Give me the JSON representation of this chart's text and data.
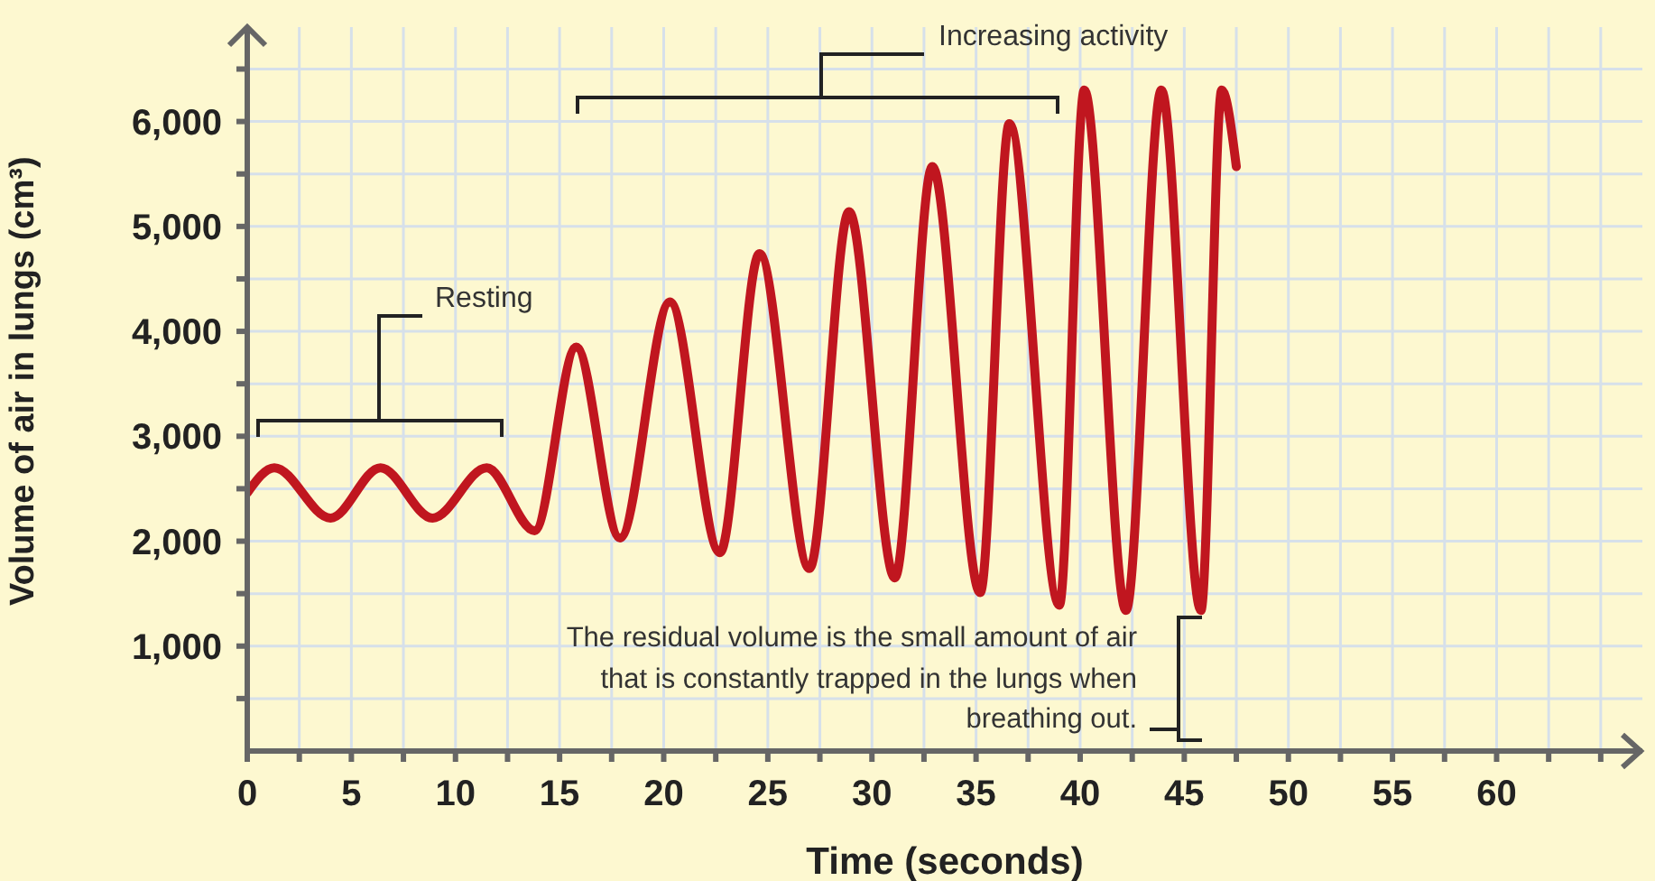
{
  "chart_data": {
    "type": "line",
    "xlabel": "Time (seconds)",
    "ylabel": "Volume of air in lungs (cm³)",
    "annotations": [
      "Resting",
      "Increasing activity",
      "The residual volume is the small amount of air that is constantly trapped in the lungs when breathing out."
    ],
    "x": [
      0,
      1.3,
      4,
      6.4,
      8.9,
      11.5,
      13.8,
      15.8,
      17.9,
      20.3,
      22.7,
      24.6,
      27,
      28.9,
      31.1,
      32.9,
      35.2,
      36.6,
      39,
      40.2,
      42.2,
      43.9,
      45.8,
      46.8,
      47.5
    ],
    "series": [
      {
        "color": "#c0161f",
        "values": [
          2460,
          2700,
          2220,
          2700,
          2220,
          2700,
          2100,
          3850,
          2030,
          4280,
          1890,
          4740,
          1740,
          5140,
          1650,
          5570,
          1510,
          5980,
          1390,
          6300,
          1340,
          6300,
          1340,
          6300,
          5570
        ]
      }
    ],
    "xlim": [
      0,
      67
    ],
    "xticks": [
      0,
      {
        "value": 2.5,
        "label": null
      },
      5,
      {
        "value": 7.5,
        "label": null
      },
      10,
      {
        "value": 12.5,
        "label": null
      },
      15,
      {
        "value": 17.5,
        "label": null
      },
      20,
      {
        "value": 22.5,
        "label": null
      },
      25,
      {
        "value": 27.5,
        "label": null
      },
      30,
      {
        "value": 32.5,
        "label": null
      },
      35,
      {
        "value": 37.5,
        "label": null
      },
      40,
      {
        "value": 42.5,
        "label": null
      },
      45,
      {
        "value": 47.5,
        "label": null
      },
      50,
      {
        "value": 52.5,
        "label": null
      },
      55,
      {
        "value": 57.5,
        "label": null
      },
      60,
      {
        "value": 62.5,
        "label": null
      },
      {
        "value": 65,
        "label": null
      }
    ],
    "ylim": [
      0,
      6900
    ],
    "yticks": [
      {
        "value": 500,
        "label": null
      },
      {
        "value": 1000,
        "label": "1,000"
      },
      {
        "value": 1500,
        "label": null
      },
      {
        "value": 2000,
        "label": "2,000"
      },
      {
        "value": 2500,
        "label": null
      },
      {
        "value": 3000,
        "label": "3,000"
      },
      {
        "value": 3500,
        "label": null
      },
      {
        "value": 4000,
        "label": "4,000"
      },
      {
        "value": 4500,
        "label": null
      },
      {
        "value": 5000,
        "label": "5,000"
      },
      {
        "value": 5500,
        "label": null
      },
      {
        "value": 6000,
        "label": "6,000"
      },
      {
        "value": 6500,
        "label": null
      }
    ],
    "grid": true,
    "marker": "none",
    "line_style": "solid"
  }
}
